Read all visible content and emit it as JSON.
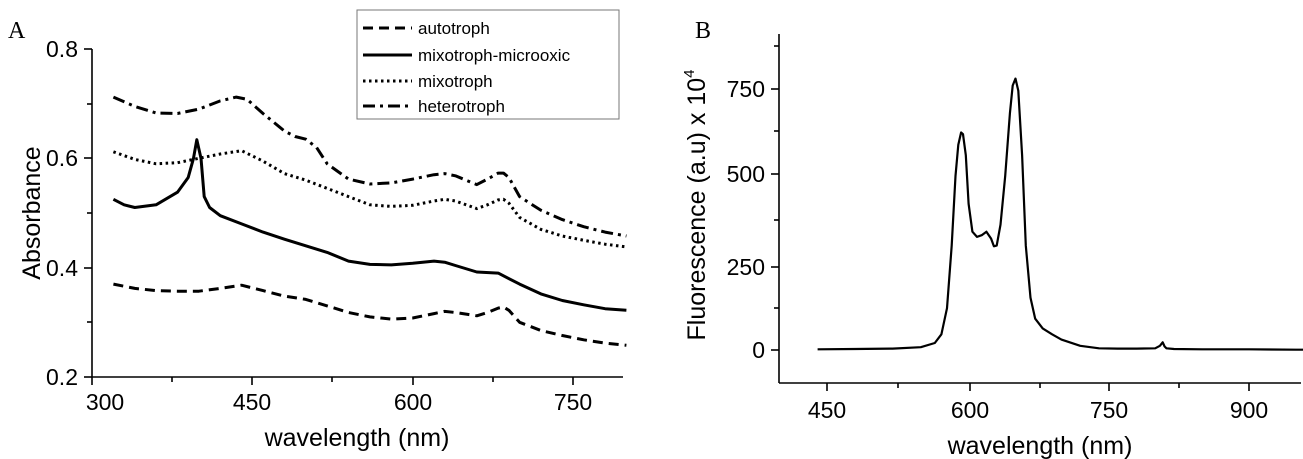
{
  "chart_data": [
    {
      "panel": "A",
      "type": "line",
      "title": "",
      "xlabel": "wavelength (nm)",
      "ylabel": "Absorbance",
      "xlim": [
        300,
        800
      ],
      "ylim": [
        0.2,
        0.8
      ],
      "xticks": [
        300,
        450,
        600,
        750
      ],
      "yticks": [
        0.2,
        0.4,
        0.6,
        0.8
      ],
      "legend_position": "top-right",
      "series": [
        {
          "name": "autotroph",
          "style": "dashed",
          "x": [
            320,
            340,
            360,
            380,
            400,
            420,
            440,
            460,
            480,
            500,
            520,
            540,
            560,
            580,
            600,
            620,
            630,
            640,
            660,
            670,
            680,
            685,
            690,
            700,
            720,
            740,
            760,
            780,
            800
          ],
          "y": [
            0.37,
            0.362,
            0.358,
            0.357,
            0.357,
            0.362,
            0.368,
            0.358,
            0.348,
            0.342,
            0.33,
            0.318,
            0.31,
            0.306,
            0.308,
            0.316,
            0.32,
            0.318,
            0.312,
            0.318,
            0.326,
            0.328,
            0.322,
            0.3,
            0.285,
            0.276,
            0.268,
            0.262,
            0.258
          ]
        },
        {
          "name": "mixotroph-microoxic",
          "style": "solid",
          "x": [
            320,
            330,
            340,
            360,
            380,
            390,
            395,
            398,
            402,
            405,
            410,
            420,
            440,
            460,
            480,
            500,
            520,
            540,
            560,
            580,
            600,
            620,
            630,
            640,
            660,
            680,
            700,
            720,
            740,
            760,
            780,
            800
          ],
          "y": [
            0.525,
            0.515,
            0.51,
            0.515,
            0.538,
            0.565,
            0.6,
            0.634,
            0.6,
            0.53,
            0.51,
            0.495,
            0.48,
            0.465,
            0.452,
            0.44,
            0.428,
            0.412,
            0.406,
            0.405,
            0.408,
            0.412,
            0.41,
            0.404,
            0.392,
            0.39,
            0.37,
            0.352,
            0.34,
            0.332,
            0.325,
            0.322
          ]
        },
        {
          "name": "mixotroph",
          "style": "dotted",
          "x": [
            320,
            340,
            360,
            380,
            400,
            420,
            440,
            460,
            480,
            500,
            520,
            540,
            560,
            580,
            600,
            620,
            630,
            640,
            660,
            670,
            680,
            685,
            690,
            700,
            720,
            740,
            760,
            780,
            800
          ],
          "y": [
            0.612,
            0.598,
            0.59,
            0.592,
            0.6,
            0.608,
            0.614,
            0.595,
            0.572,
            0.56,
            0.545,
            0.53,
            0.515,
            0.512,
            0.514,
            0.522,
            0.525,
            0.522,
            0.508,
            0.515,
            0.524,
            0.525,
            0.518,
            0.492,
            0.47,
            0.458,
            0.45,
            0.443,
            0.438
          ]
        },
        {
          "name": "heterotroph",
          "style": "dashdot",
          "x": [
            320,
            340,
            360,
            380,
            400,
            420,
            435,
            445,
            460,
            480,
            490,
            500,
            510,
            520,
            540,
            560,
            580,
            600,
            620,
            630,
            640,
            660,
            670,
            680,
            685,
            690,
            700,
            720,
            740,
            760,
            780,
            800
          ],
          "y": [
            0.712,
            0.695,
            0.683,
            0.682,
            0.69,
            0.705,
            0.712,
            0.708,
            0.682,
            0.65,
            0.64,
            0.635,
            0.62,
            0.59,
            0.562,
            0.553,
            0.555,
            0.562,
            0.57,
            0.572,
            0.568,
            0.552,
            0.562,
            0.573,
            0.573,
            0.565,
            0.53,
            0.505,
            0.488,
            0.475,
            0.465,
            0.458
          ]
        }
      ]
    },
    {
      "panel": "B",
      "type": "line",
      "title": "",
      "xlabel": "wavelength (nm)",
      "ylabel": "Fluorescence (a.u) x 10",
      "ylabel_superscript": "4",
      "xlim": [
        375,
        1000
      ],
      "ylim": [
        -100,
        900
      ],
      "xticks": [
        450,
        600,
        750,
        900
      ],
      "yticks": [
        0,
        250,
        500,
        750
      ],
      "series": [
        {
          "name": "",
          "style": "solid",
          "x": [
            440,
            480,
            520,
            550,
            565,
            572,
            578,
            583,
            587,
            590,
            593,
            595,
            598,
            601,
            605,
            610,
            615,
            620,
            625,
            628,
            631,
            635,
            640,
            645,
            648,
            651,
            654,
            658,
            662,
            667,
            672,
            680,
            690,
            700,
            720,
            740,
            760,
            780,
            800,
            805,
            808,
            810,
            812,
            820,
            850,
            900,
            950,
            1000
          ],
          "y": [
            2,
            3,
            4,
            8,
            20,
            45,
            120,
            300,
            500,
            590,
            625,
            620,
            560,
            420,
            340,
            325,
            330,
            340,
            320,
            298,
            300,
            360,
            500,
            680,
            760,
            780,
            745,
            560,
            300,
            150,
            90,
            62,
            45,
            30,
            12,
            5,
            4,
            4,
            5,
            12,
            22,
            10,
            5,
            3,
            2,
            2,
            1,
            1
          ]
        }
      ]
    }
  ],
  "panels": {
    "A": {
      "letter": "A",
      "xlabel": "wavelength (nm)",
      "ylabel": "Absorbance",
      "xtick_labels": [
        "300",
        "450",
        "600",
        "750"
      ],
      "ytick_labels": [
        "0.2",
        "0.4",
        "0.6",
        "0.8"
      ],
      "legend": [
        "autotroph",
        "mixotroph-microoxic",
        "mixotroph",
        "heterotroph"
      ]
    },
    "B": {
      "letter": "B",
      "xlabel": "wavelength (nm)",
      "ylabel": "Fluorescence (a.u) x 10",
      "ylabel_sup": "4",
      "xtick_labels": [
        "450",
        "600",
        "750",
        "900"
      ],
      "ytick_labels": [
        "0",
        "250",
        "500",
        "750"
      ]
    }
  }
}
